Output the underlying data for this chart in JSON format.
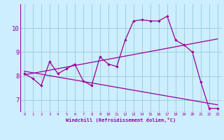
{
  "xlabel": "Windchill (Refroidissement éolien,°C)",
  "ylabel": "",
  "bg_color": "#cceeff",
  "line_color": "#990099",
  "grid_color": "#99cccc",
  "xlim": [
    -0.5,
    23.5
  ],
  "ylim": [
    6.5,
    11.0
  ],
  "yticks": [
    7,
    8,
    9,
    10
  ],
  "xticks": [
    0,
    1,
    2,
    3,
    4,
    5,
    6,
    7,
    8,
    9,
    10,
    11,
    12,
    13,
    14,
    15,
    16,
    17,
    18,
    19,
    20,
    21,
    22,
    23
  ],
  "windchill_x": [
    0,
    1,
    2,
    3,
    4,
    5,
    6,
    7,
    8,
    9,
    10,
    11,
    12,
    13,
    14,
    15,
    16,
    17,
    18,
    19,
    20,
    21,
    22,
    23
  ],
  "windchill_y": [
    8.1,
    7.9,
    7.6,
    8.6,
    8.1,
    8.3,
    8.5,
    7.8,
    7.6,
    8.8,
    8.5,
    8.4,
    9.5,
    10.3,
    10.35,
    10.3,
    10.3,
    10.5,
    9.5,
    9.3,
    9.0,
    7.75,
    6.65,
    6.65
  ],
  "trend1_x": [
    0,
    23
  ],
  "trend1_y": [
    8.05,
    9.55
  ],
  "trend2_x": [
    0,
    23
  ],
  "trend2_y": [
    8.2,
    6.8
  ]
}
